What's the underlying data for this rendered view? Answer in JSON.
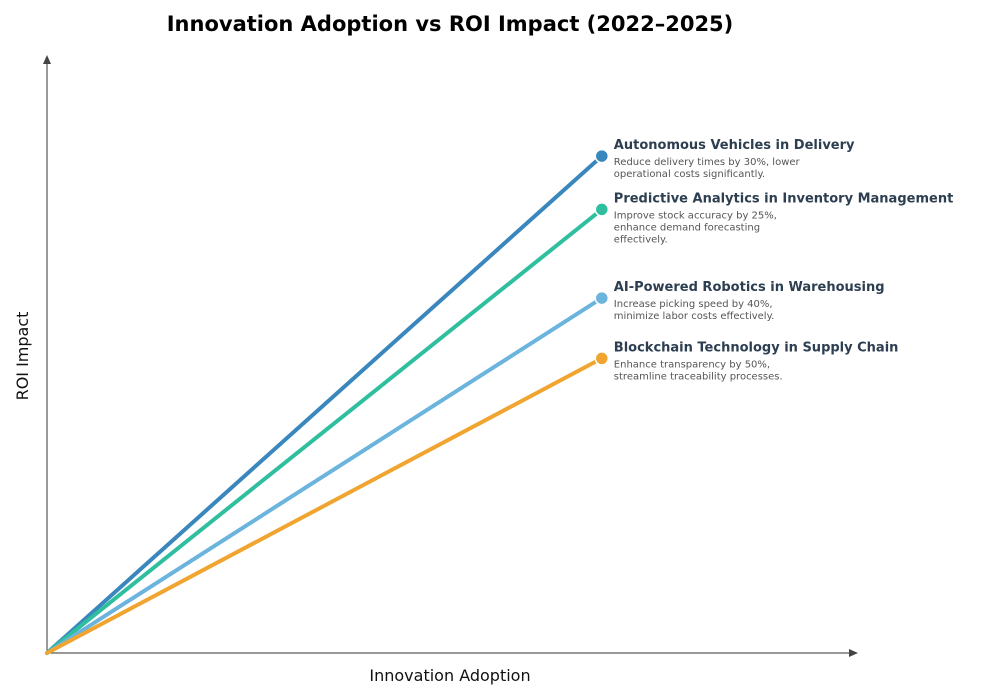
{
  "chart_data": {
    "type": "line",
    "title": "Innovation Adoption vs ROI Impact (2022–2025)",
    "xlabel": "Innovation Adoption",
    "ylabel": "ROI Impact",
    "xlim": [
      0,
      1.46
    ],
    "ylim": [
      0,
      1.685
    ],
    "grid": false,
    "series": [
      {
        "name": "Autonomous Vehicles in Delivery",
        "description": [
          "Reduce delivery times by 30%, lower",
          "operational costs significantly."
        ],
        "color": "#3a87be",
        "x": [
          0,
          1
        ],
        "y": [
          0,
          1.4
        ]
      },
      {
        "name": "Predictive Analytics in Inventory Management",
        "description": [
          "Improve stock accuracy by 25%,",
          "enhance demand forecasting",
          "effectively."
        ],
        "color": "#2fbf9f",
        "x": [
          0,
          1
        ],
        "y": [
          0,
          1.25
        ]
      },
      {
        "name": "AI-Powered Robotics in Warehousing",
        "description": [
          "Increase picking speed by 40%,",
          "minimize labor costs effectively."
        ],
        "color": "#6ab4dd",
        "x": [
          0,
          1
        ],
        "y": [
          0,
          1.0
        ]
      },
      {
        "name": "Blockchain Technology in Supply Chain",
        "description": [
          "Enhance transparency by 50%,",
          "streamline traceability processes."
        ],
        "color": "#f0a530",
        "x": [
          0,
          1
        ],
        "y": [
          0,
          0.83
        ]
      }
    ]
  }
}
